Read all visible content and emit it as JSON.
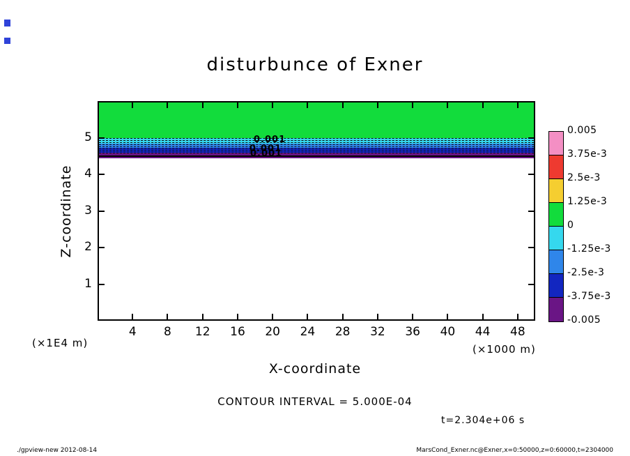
{
  "header": {
    "title": "disturbunce of Exner"
  },
  "chart_data": {
    "type": "heatmap",
    "title": "disturbunce of Exner",
    "xlabel": "X-coordinate",
    "x_unit": "(×1000 m)",
    "ylabel": "Z-coordinate",
    "y_unit": "(×1E4 m)",
    "xlim": [
      0,
      50
    ],
    "ylim": [
      0,
      6
    ],
    "x_ticks": [
      4,
      8,
      12,
      16,
      20,
      24,
      28,
      32,
      36,
      40,
      44,
      48
    ],
    "y_ticks": [
      5,
      4,
      3,
      2,
      1
    ],
    "grid": false,
    "legend_position": "right-colorbar",
    "contour_interval": "CONTOUR INTERVAL = 5.000E-04",
    "time_label": "t=2.304e+06 s",
    "contour_labels": [
      "0.001",
      "0.001",
      "0.001"
    ],
    "colorbar": {
      "labels": [
        "0.005",
        "3.75e-3",
        "2.5e-3",
        "1.25e-3",
        "0",
        "-1.25e-3",
        "-2.5e-3",
        "-3.75e-3",
        "-0.005"
      ],
      "colors": [
        "#F48FC4",
        "#EE3A30",
        "#F5CE30",
        "#12DC3C",
        "#35D8EE",
        "#2F86EA",
        "#1226C0",
        "#6A1585"
      ]
    },
    "field": {
      "description": "Horizontally uniform layered disturbance near z=4.5 (x1E4 m); value ~0 (green tone) above z~4.8; thin negative bands (cyan/blue/navy, dashed contours) between z~4.4 and z~4.9; unshaded (zero) below z~4.4",
      "bands_top_to_bottom": [
        {
          "z_from": 6.0,
          "z_to": 4.88,
          "value_range": "0 to 1.25e-3",
          "color": "#12DC3C"
        },
        {
          "z_from": 4.88,
          "z_to": 4.76,
          "value_range": "0 to -1.25e-3",
          "color": "#35D8EE"
        },
        {
          "z_from": 4.76,
          "z_to": 4.67,
          "value_range": "-1.25e-3 to -2.5e-3",
          "color": "#2F86EA"
        },
        {
          "z_from": 4.67,
          "z_to": 4.55,
          "value_range": "-2.5e-3 to -3.75e-3",
          "color": "#1226C0"
        },
        {
          "z_from": 4.55,
          "z_to": 4.44,
          "value_range": "-3.75e-3 to -0.005",
          "color": "#6A1585"
        },
        {
          "z_from": 4.44,
          "z_to": 0.0,
          "value_range": "0",
          "color": "#ffffff"
        }
      ]
    }
  },
  "footer": {
    "left": "./gpview-new  2012-08-14",
    "right": "MarsCond_Exner.nc@Exner,x=0:50000,z=0:60000,t=2304000"
  }
}
